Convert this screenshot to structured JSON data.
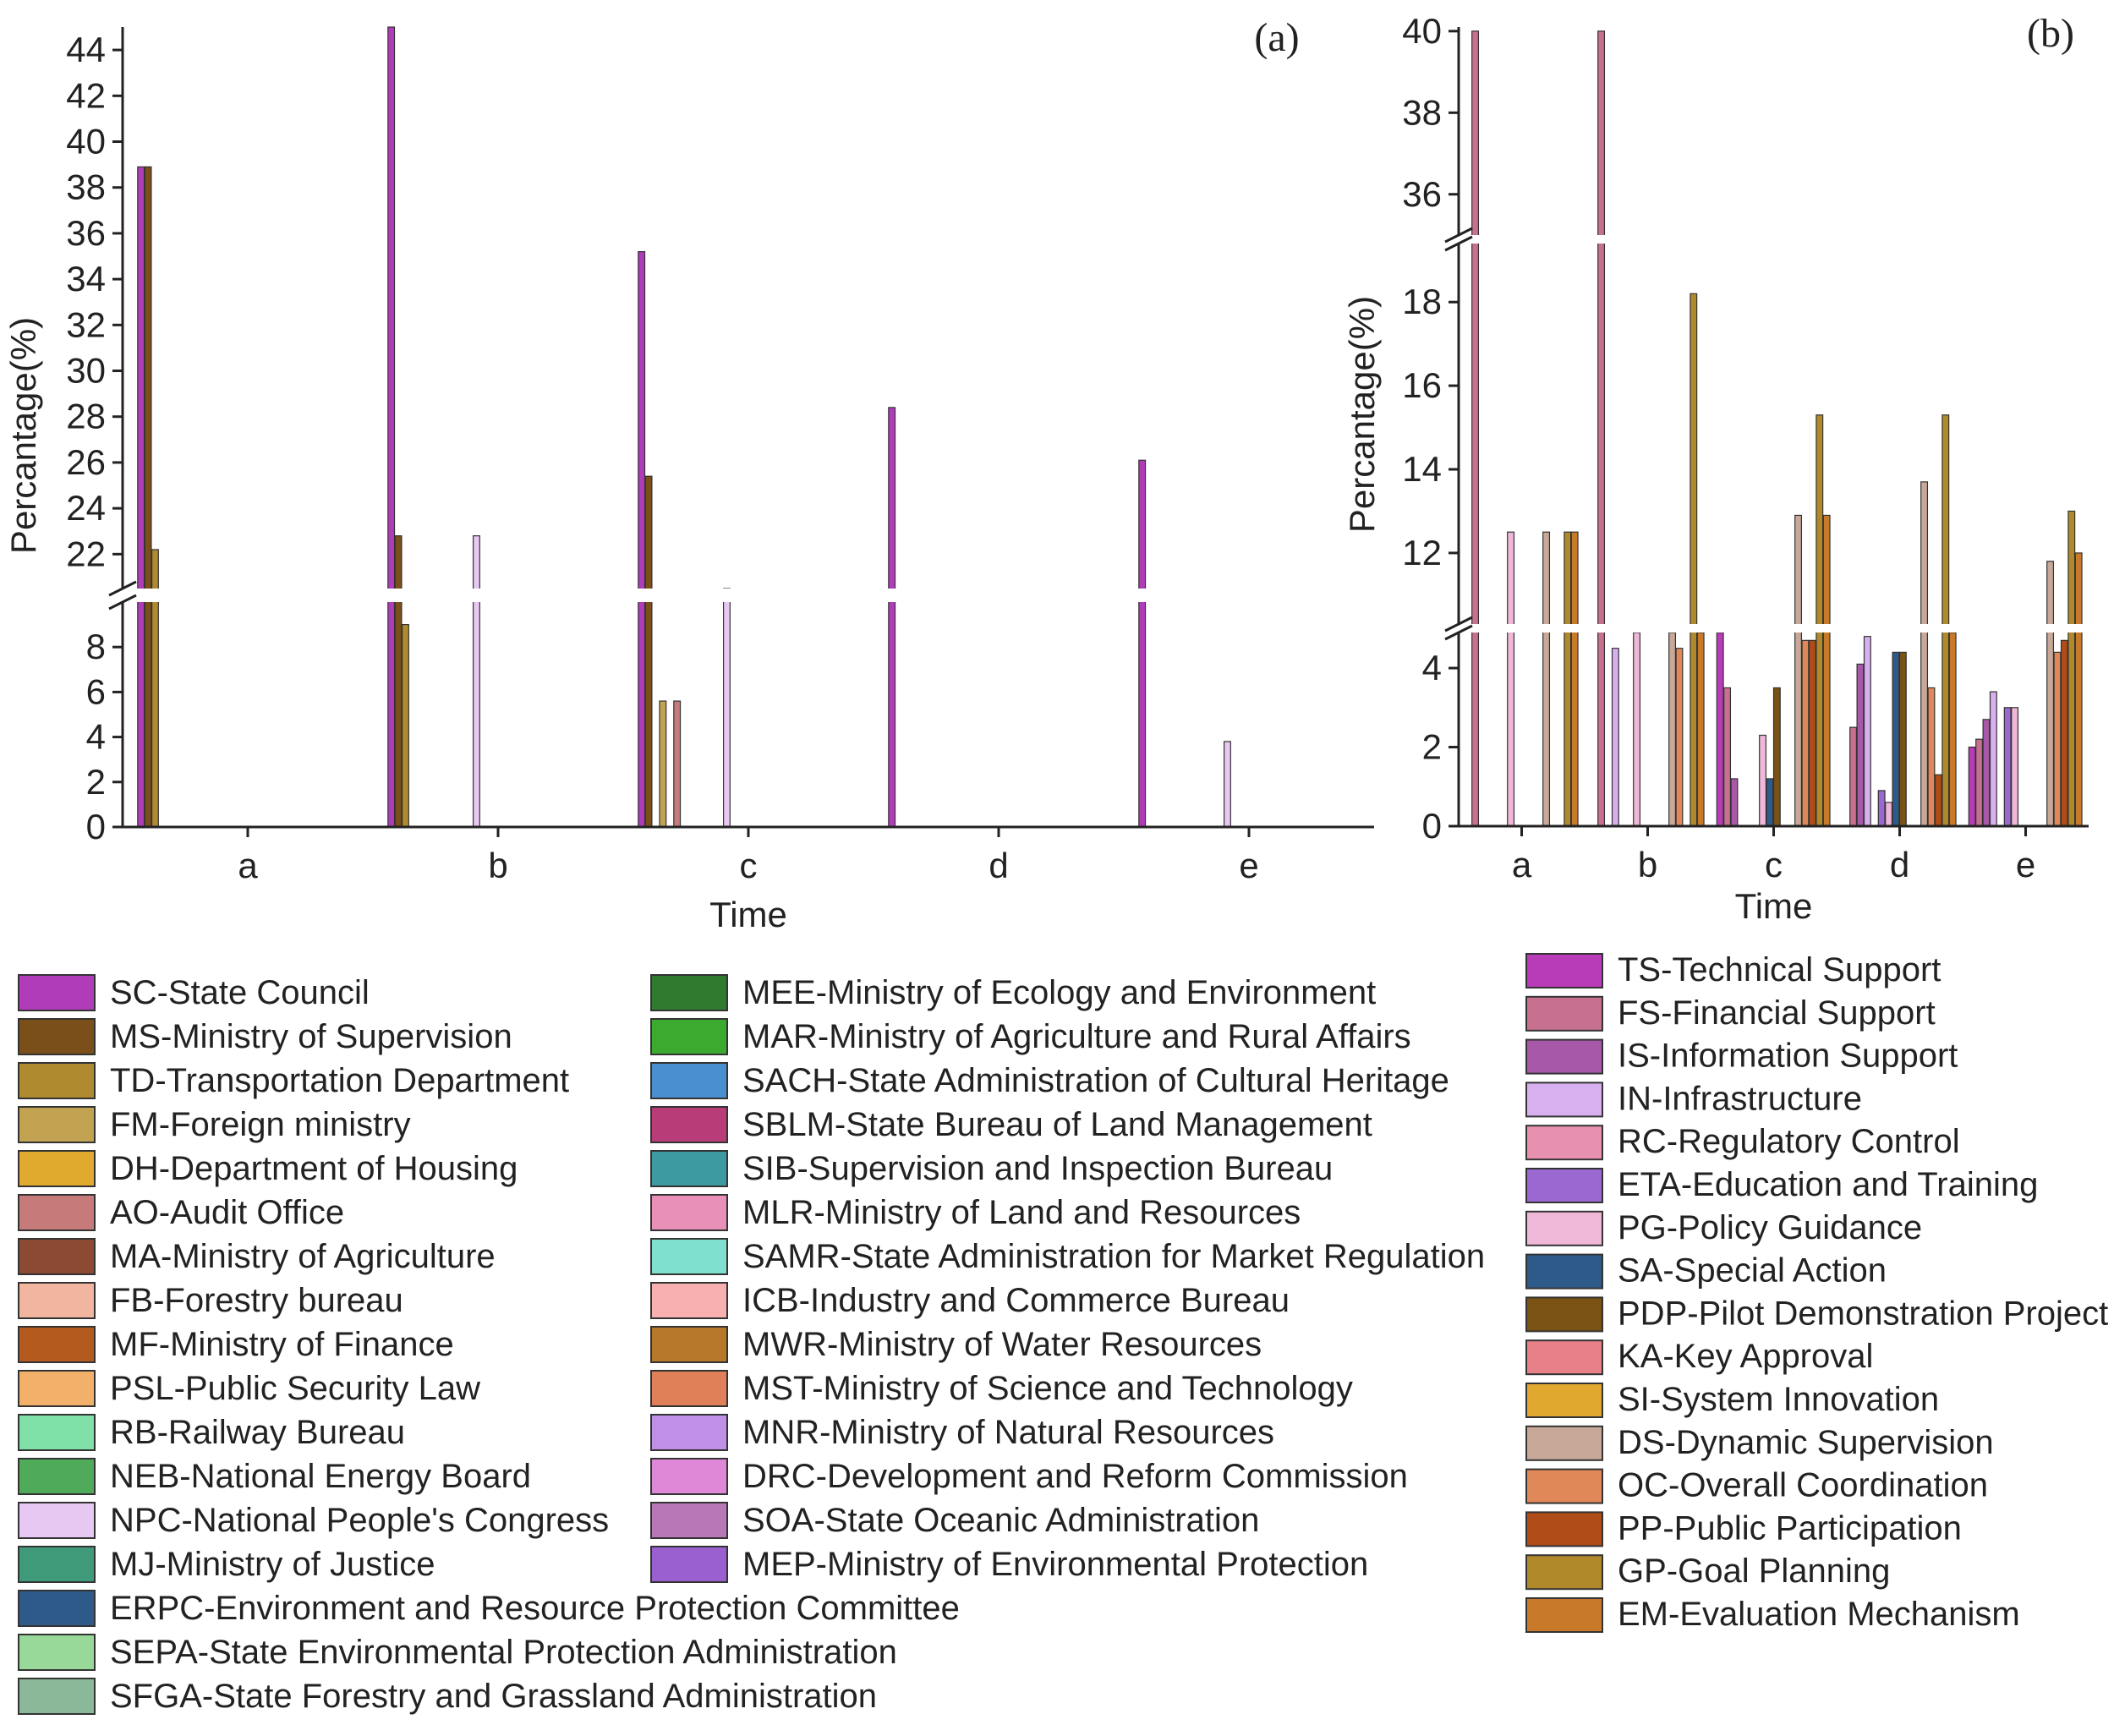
{
  "chart_data": [
    {
      "type": "bar",
      "panel_label": "(a)",
      "xlabel": "Time",
      "ylabel": "Percantage(%)",
      "categories": [
        "a",
        "b",
        "c",
        "d",
        "e"
      ],
      "y_axis_break": {
        "lower_range": [
          0,
          10
        ],
        "upper_range": [
          20.5,
          45
        ]
      },
      "lower_ticks": [
        0,
        2,
        4,
        6,
        8
      ],
      "upper_ticks": [
        22,
        24,
        26,
        28,
        30,
        32,
        34,
        36,
        38,
        40,
        42,
        44
      ],
      "series": [
        {
          "name": "SC-State Council",
          "color": "#b03cba",
          "values": [
            38.9,
            45.0,
            35.2,
            28.4,
            26.1
          ]
        },
        {
          "name": "MS-Ministry of Supervision",
          "color": "#7a4f1a",
          "values": [
            38.9,
            22.8,
            25.4,
            0,
            0
          ]
        },
        {
          "name": "TD-Transportation Department",
          "color": "#b08a2e",
          "values": [
            22.2,
            9.0,
            0,
            0,
            0
          ]
        },
        {
          "name": "FM-Foreign ministry",
          "color": "#c2a352",
          "values": [
            0,
            0,
            5.6,
            0,
            0
          ]
        },
        {
          "name": "DH-Department of Housing",
          "color": "#e0aa2e",
          "values": [
            0,
            0,
            0,
            0,
            0
          ]
        },
        {
          "name": "AO-Audit Office",
          "color": "#c77a7a",
          "values": [
            0,
            0,
            5.6,
            0,
            0
          ]
        },
        {
          "name": "MA-Ministry of Agriculture",
          "color": "#8c4a32",
          "values": [
            0,
            0,
            0,
            0,
            0
          ]
        },
        {
          "name": "FB-Forestry bureau",
          "color": "#f2b5a0",
          "values": [
            0,
            0,
            0,
            0,
            0
          ]
        },
        {
          "name": "MF-Ministry of Finance",
          "color": "#b35a1e",
          "values": [
            0,
            0,
            0,
            0,
            0
          ]
        },
        {
          "name": "PSL-Public Security Law",
          "color": "#f2b06a",
          "values": [
            0,
            0,
            0,
            0,
            0
          ]
        },
        {
          "name": "RB-Railway Bureau",
          "color": "#7fe0a8",
          "values": [
            0,
            0,
            0,
            0,
            0
          ]
        },
        {
          "name": "NEB-National Energy Board",
          "color": "#4faa5a",
          "values": [
            0,
            0,
            0,
            0,
            0
          ]
        },
        {
          "name": "NPC-National People's Congress",
          "color": "#e6c8f2",
          "values": [
            0,
            22.8,
            11.0,
            0,
            3.8
          ]
        },
        {
          "name": "MJ-Ministry of Justice",
          "color": "#3f9a7a",
          "values": [
            0,
            0,
            0,
            0,
            0
          ]
        },
        {
          "name": "ERPC-Environment and Resource Protection Committee",
          "color": "#2e5a8a",
          "values": [
            0,
            0,
            0,
            0,
            0
          ]
        },
        {
          "name": "SEPA-State Environmental Protection Administration",
          "color": "#98d898",
          "values": [
            0,
            0,
            0,
            0,
            0
          ]
        },
        {
          "name": "SFGA-State Forestry and Grassland Administration",
          "color": "#8ab898",
          "values": [
            0,
            0,
            0,
            0,
            0
          ]
        },
        {
          "name": "MEE-Ministry of Ecology and Environment",
          "color": "#2e7a2e",
          "values": [
            0,
            0,
            0,
            0,
            0
          ]
        },
        {
          "name": "MAR-Ministry of Agriculture and Rural Affairs",
          "color": "#3caa2e",
          "values": [
            0,
            0,
            0,
            0,
            0
          ]
        },
        {
          "name": "SACH-State Administration of Cultural Heritage",
          "color": "#4a90d0",
          "values": [
            0,
            0,
            0,
            0,
            0
          ]
        },
        {
          "name": "SBLM-State Bureau of Land Management",
          "color": "#b83c78",
          "values": [
            0,
            0,
            0,
            0,
            0
          ]
        },
        {
          "name": "SIB-Supervision and Inspection Bureau",
          "color": "#3c9aa0",
          "values": [
            0,
            0,
            0,
            0,
            0
          ]
        },
        {
          "name": "MLR-Ministry of Land and Resources",
          "color": "#e890b8",
          "values": [
            0,
            0,
            0,
            0,
            0
          ]
        },
        {
          "name": "SAMR-State Administration for Market Regulation",
          "color": "#80e0d0",
          "values": [
            0,
            0,
            0,
            0,
            0
          ]
        },
        {
          "name": "ICB-Industry and Commerce Bureau",
          "color": "#f8b0b0",
          "values": [
            0,
            0,
            0,
            0,
            0
          ]
        },
        {
          "name": "MWR-Ministry of Water Resources",
          "color": "#b8782a",
          "values": [
            0,
            0,
            0,
            0,
            0
          ]
        },
        {
          "name": "MST-Ministry of Science and Technology",
          "color": "#e08058",
          "values": [
            0,
            0,
            0,
            0,
            0
          ]
        },
        {
          "name": "MNR-Ministry of Natural Resources",
          "color": "#c090e8",
          "values": [
            0,
            0,
            0,
            0,
            0
          ]
        },
        {
          "name": "DRC-Development and Reform Commission",
          "color": "#e088d8",
          "values": [
            0,
            0,
            0,
            0,
            0
          ]
        },
        {
          "name": "SOA-State Oceanic Administration",
          "color": "#b878b8",
          "values": [
            0,
            0,
            0,
            0,
            0
          ]
        },
        {
          "name": "MEP-Ministry of Environmental Protection",
          "color": "#9a60d0",
          "values": [
            0,
            0,
            0,
            0,
            0
          ]
        }
      ]
    },
    {
      "type": "bar",
      "panel_label": "(b)",
      "xlabel": "Time",
      "ylabel": "Percantage(%)",
      "categories": [
        "a",
        "b",
        "c",
        "d",
        "e"
      ],
      "y_axis_breaks": [
        [
          4.9,
          10.3
        ],
        [
          19.4,
          35.0
        ]
      ],
      "segments": [
        [
          0,
          4.9
        ],
        [
          10.3,
          19.4
        ],
        [
          35.0,
          40.1
        ]
      ],
      "lower_ticks": [
        0,
        2,
        4
      ],
      "middle_ticks": [
        12,
        14,
        16,
        18
      ],
      "upper_ticks": [
        36,
        38,
        40
      ],
      "series": [
        {
          "name": "TS-Technical Support",
          "color": "#b83cb8",
          "values": [
            0,
            0,
            4.9,
            0,
            2.0
          ]
        },
        {
          "name": "FS-Financial Support",
          "color": "#c87090",
          "values": [
            40.0,
            40.0,
            3.5,
            2.5,
            2.2
          ]
        },
        {
          "name": "IS-Information Support",
          "color": "#a858a8",
          "values": [
            0,
            0,
            1.2,
            4.1,
            2.7
          ]
        },
        {
          "name": "IN-Infrastructure",
          "color": "#d8b0f0",
          "values": [
            0,
            4.5,
            0,
            4.8,
            3.4
          ]
        },
        {
          "name": "RC-Regulatory Control",
          "color": "#e890b0",
          "values": [
            0,
            0,
            0,
            0,
            0
          ]
        },
        {
          "name": "ETA-Education and Training",
          "color": "#9a68d0",
          "values": [
            0,
            0,
            0,
            0.9,
            3.0
          ]
        },
        {
          "name": "PG-Policy Guidance",
          "color": "#f0b8d8",
          "values": [
            12.5,
            4.9,
            2.3,
            0.6,
            3.0
          ]
        },
        {
          "name": "SA-Special Action",
          "color": "#2e5a8a",
          "values": [
            0,
            0,
            1.2,
            4.4,
            0
          ]
        },
        {
          "name": "PDP-Pilot Demonstration Project",
          "color": "#7a5214",
          "values": [
            0,
            0,
            3.5,
            4.4,
            0
          ]
        },
        {
          "name": "KA-Key Approval",
          "color": "#e88088",
          "values": [
            0,
            0,
            0,
            0,
            0
          ]
        },
        {
          "name": "SI-System Innovation",
          "color": "#e0a82e",
          "values": [
            0,
            0,
            0,
            0,
            0
          ]
        },
        {
          "name": "DS-Dynamic Supervision",
          "color": "#c8a898",
          "values": [
            12.5,
            4.9,
            12.9,
            13.7,
            11.8
          ]
        },
        {
          "name": "OC-Overall Coordination",
          "color": "#e08858",
          "values": [
            0,
            4.5,
            4.7,
            3.5,
            4.4
          ]
        },
        {
          "name": "PP-Public Participation",
          "color": "#b04c18",
          "values": [
            0,
            0,
            4.7,
            1.3,
            4.7
          ]
        },
        {
          "name": "GP-Goal Planning",
          "color": "#b08a2a",
          "values": [
            12.5,
            18.2,
            15.3,
            15.3,
            13.0
          ]
        },
        {
          "name": "EM-Evaluation Mechanism",
          "color": "#c87a2a",
          "values": [
            12.5,
            4.9,
            12.9,
            4.9,
            12.0
          ]
        }
      ]
    }
  ]
}
